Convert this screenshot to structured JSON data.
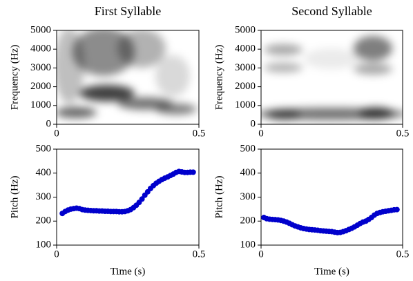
{
  "chart_data": [
    {
      "type": "spectrogram",
      "title": "First Syllable",
      "ylabel": "Frequency (Hz)",
      "xlim": [
        0,
        0.5
      ],
      "xticks": [
        0,
        0.5
      ],
      "ylim": [
        0,
        5000
      ],
      "yticks": [
        0,
        1000,
        2000,
        3000,
        4000,
        5000
      ]
    },
    {
      "type": "spectrogram",
      "title": "Second Syllable",
      "ylabel": "Frequency (Hz)",
      "xlim": [
        0,
        0.5
      ],
      "xticks": [
        0,
        0.5
      ],
      "ylim": [
        0,
        5000
      ],
      "yticks": [
        0,
        1000,
        2000,
        3000,
        4000,
        5000
      ]
    },
    {
      "type": "scatter",
      "xlabel": "Time (s)",
      "ylabel": "Pitch (Hz)",
      "color": "#0000cc",
      "xlim": [
        0,
        0.5
      ],
      "xticks": [
        0,
        0.5
      ],
      "ylim": [
        100,
        500
      ],
      "yticks": [
        100,
        200,
        300,
        400,
        500
      ],
      "x": [
        0.02,
        0.03,
        0.04,
        0.05,
        0.06,
        0.07,
        0.08,
        0.09,
        0.1,
        0.11,
        0.12,
        0.13,
        0.14,
        0.15,
        0.16,
        0.17,
        0.18,
        0.19,
        0.2,
        0.21,
        0.22,
        0.23,
        0.24,
        0.25,
        0.26,
        0.27,
        0.28,
        0.29,
        0.3,
        0.31,
        0.32,
        0.33,
        0.34,
        0.35,
        0.36,
        0.37,
        0.38,
        0.39,
        0.4,
        0.41,
        0.42,
        0.43,
        0.44,
        0.45,
        0.46,
        0.47,
        0.48
      ],
      "values": [
        232,
        240,
        246,
        250,
        252,
        254,
        252,
        248,
        246,
        245,
        244,
        243,
        243,
        242,
        242,
        241,
        241,
        240,
        240,
        240,
        239,
        239,
        240,
        243,
        248,
        256,
        266,
        278,
        292,
        308,
        322,
        336,
        348,
        358,
        366,
        373,
        379,
        384,
        390,
        396,
        403,
        407,
        405,
        403,
        403,
        404,
        404
      ]
    },
    {
      "type": "scatter",
      "xlabel": "Time (s)",
      "ylabel": "Pitch (Hz)",
      "color": "#0000cc",
      "xlim": [
        0,
        0.5
      ],
      "xticks": [
        0,
        0.5
      ],
      "ylim": [
        100,
        500
      ],
      "yticks": [
        100,
        200,
        300,
        400,
        500
      ],
      "x": [
        0.01,
        0.02,
        0.03,
        0.04,
        0.05,
        0.06,
        0.07,
        0.08,
        0.09,
        0.1,
        0.11,
        0.12,
        0.13,
        0.14,
        0.15,
        0.16,
        0.17,
        0.18,
        0.19,
        0.2,
        0.21,
        0.22,
        0.23,
        0.24,
        0.25,
        0.26,
        0.27,
        0.28,
        0.29,
        0.3,
        0.31,
        0.32,
        0.33,
        0.34,
        0.35,
        0.36,
        0.37,
        0.38,
        0.39,
        0.4,
        0.41,
        0.42,
        0.43,
        0.44,
        0.45,
        0.46,
        0.47,
        0.48
      ],
      "values": [
        215,
        210,
        208,
        207,
        206,
        205,
        203,
        200,
        196,
        191,
        185,
        180,
        176,
        172,
        169,
        167,
        165,
        164,
        163,
        162,
        160,
        159,
        158,
        157,
        156,
        154,
        152,
        153,
        156,
        160,
        165,
        170,
        176,
        183,
        190,
        196,
        200,
        207,
        215,
        225,
        232,
        236,
        239,
        241,
        243,
        245,
        247,
        248
      ]
    }
  ]
}
